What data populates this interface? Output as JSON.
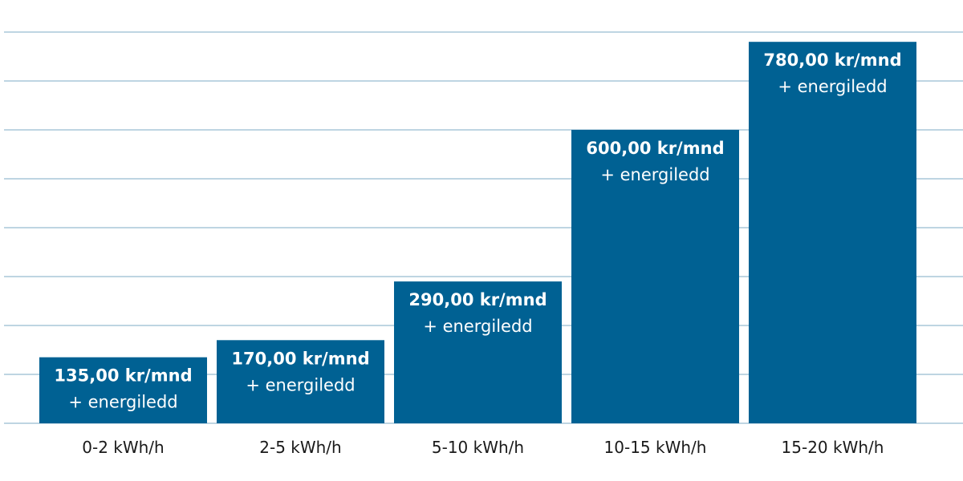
{
  "chart_data": {
    "type": "bar",
    "title": "",
    "xlabel": "",
    "ylabel": "",
    "categories": [
      "0-2 kWh/h",
      "2-5 kWh/h",
      "5-10 kWh/h",
      "10-15 kWh/h",
      "15-20 kWh/h"
    ],
    "values": [
      135,
      170,
      290,
      600,
      780
    ],
    "data_labels": [
      [
        "135,00 kr/mnd",
        "+ energiledd"
      ],
      [
        "170,00 kr/mnd",
        "+ energiledd"
      ],
      [
        "290,00 kr/mnd",
        "+ energiledd"
      ],
      [
        "600,00 kr/mnd",
        "+ energiledd"
      ],
      [
        "780,00 kr/mnd",
        "+ energiledd"
      ]
    ],
    "ylim": [
      0,
      800
    ],
    "y_grid_step": 100,
    "grid": true,
    "y_ticks_shown": false,
    "legend": "none",
    "colors": {
      "bar": "#006193",
      "grid": "#a9c7d8",
      "label_text": "#ffffff",
      "tick_text": "#1a1a1a"
    }
  }
}
